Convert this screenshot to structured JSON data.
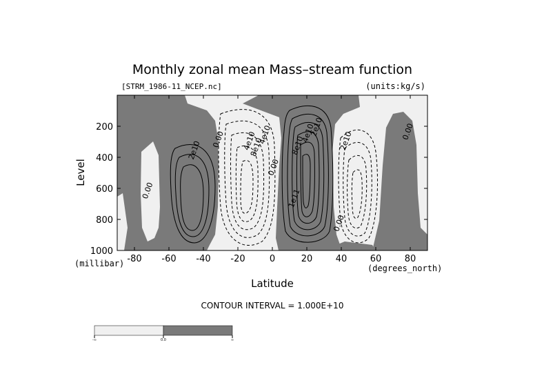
{
  "chart_data": {
    "type": "contour",
    "title": "Monthly zonal mean Mass–stream function",
    "file_label": "[STRM_1986-11_NCEP.nc]",
    "units_label": "(units:kg/s)",
    "xlabel": "Latitude",
    "ylabel": "Level",
    "x_unit": "(degrees_north)",
    "y_unit": "(millibar)",
    "xlim": [
      -90,
      90
    ],
    "ylim": [
      1000,
      0
    ],
    "x_ticks": [
      -80,
      -60,
      -40,
      -20,
      0,
      20,
      40,
      60,
      80
    ],
    "y_ticks": [
      200,
      400,
      600,
      800,
      1000
    ],
    "contour_interval_text": "CONTOUR INTERVAL = 1.000E+10",
    "contour_interval": 10000000000.0,
    "fill_colors": {
      "negative": "#f0f0f0",
      "positive": "#7a7a7a"
    },
    "cells": [
      {
        "sign": "positive",
        "center_lat": -47,
        "center_level": 600,
        "peak": 40000000000.0
      },
      {
        "sign": "negative",
        "center_lat": -12,
        "center_level": 580,
        "peak": -90000000000.0
      },
      {
        "sign": "positive",
        "center_lat": 16,
        "center_level": 560,
        "peak": 130000000000.0
      },
      {
        "sign": "negative",
        "center_lat": 48,
        "center_level": 560,
        "peak": -40000000000.0
      }
    ],
    "contour_labels": [
      {
        "text": "2e10",
        "lat": -44,
        "level": 360
      },
      {
        "text": "0.00",
        "lat": -30,
        "level": 290
      },
      {
        "text": "0.00",
        "lat": -71,
        "level": 620
      },
      {
        "text": "4e10",
        "lat": -12,
        "level": 300
      },
      {
        "text": "8e10",
        "lat": -8,
        "level": 340
      },
      {
        "text": "4e10",
        "lat": -3,
        "level": 260
      },
      {
        "text": "0.00",
        "lat": 2,
        "level": 470
      },
      {
        "text": "8e10",
        "lat": 16,
        "level": 330
      },
      {
        "text": "4e10",
        "lat": 22,
        "level": 250
      },
      {
        "text": "2e10",
        "lat": 27,
        "level": 210
      },
      {
        "text": "1e11",
        "lat": 14,
        "level": 670
      },
      {
        "text": "2e10",
        "lat": 44,
        "level": 300
      },
      {
        "text": "0.00",
        "lat": 40,
        "level": 830
      },
      {
        "text": "0.00",
        "lat": 80,
        "level": 240
      }
    ],
    "colorbar": {
      "tick_labels": [
        "-∞",
        "0.0",
        "∞"
      ]
    }
  }
}
